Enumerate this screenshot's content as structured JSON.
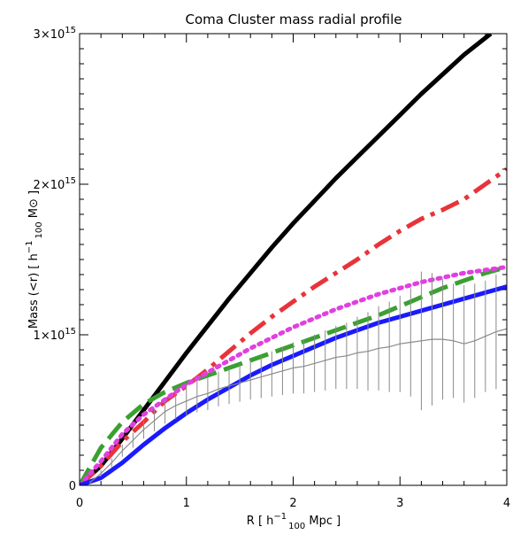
{
  "chart_data": {
    "type": "line",
    "title": "Coma Cluster mass radial profile",
    "xlabel": "R [ h-1 100 Mpc ]",
    "ylabel": "Mass (<r) [ h-1 100 M⊙ ]",
    "xlabel_parts": {
      "pre": "R [ h",
      "sup": "−1",
      "sub": "100",
      "post": " Mpc ]"
    },
    "ylabel_parts": {
      "pre": "Mass (<r) [ h",
      "sup": "−1",
      "sub": "100",
      "post": " M⊙ ]"
    },
    "xlim": [
      0,
      4
    ],
    "ylim": [
      0,
      3000000000000000.0
    ],
    "x_ticks": [
      {
        "value": 0,
        "label": "0"
      },
      {
        "value": 1,
        "label": "1"
      },
      {
        "value": 2,
        "label": "2"
      },
      {
        "value": 3,
        "label": "3"
      },
      {
        "value": 4,
        "label": "4"
      }
    ],
    "y_ticks": [
      {
        "value": 0,
        "base": "0",
        "exp": ""
      },
      {
        "value": 1000000000000000.0,
        "base": "1×10",
        "exp": "15"
      },
      {
        "value": 2000000000000000.0,
        "base": "2×10",
        "exp": "15"
      },
      {
        "value": 3000000000000000.0,
        "base": "3×10",
        "exp": "15"
      }
    ],
    "grid": false,
    "series": [
      {
        "color": "#000000",
        "style": "solid",
        "width": 5,
        "x": [
          0,
          0.2,
          0.4,
          0.6,
          0.8,
          1.0,
          1.2,
          1.4,
          1.6,
          1.8,
          2.0,
          2.2,
          2.4,
          2.6,
          2.8,
          3.0,
          3.2,
          3.4,
          3.6,
          3.85
        ],
        "y": [
          0,
          130000000000000.0,
          310000000000000.0,
          500000000000000.0,
          690000000000000.0,
          880000000000000.0,
          1060000000000000.0,
          1240000000000000.0,
          1410000000000000.0,
          1580000000000000.0,
          1740000000000000.0,
          1890000000000000.0,
          2040000000000000.0,
          2180000000000000.0,
          2320000000000000.0,
          2460000000000000.0,
          2600000000000000.0,
          2730000000000000.0,
          2860000000000000.0,
          3000000000000000.0
        ]
      },
      {
        "color": "#e8333a",
        "style": "dashdot",
        "width": 5,
        "x": [
          0,
          0.2,
          0.4,
          0.6,
          0.8,
          1.0,
          1.2,
          1.4,
          1.6,
          1.8,
          2.0,
          2.2,
          2.4,
          2.6,
          2.8,
          3.0,
          3.2,
          3.4,
          3.6,
          3.8,
          4.0
        ],
        "y": [
          0,
          130000000000000.0,
          290000000000000.0,
          420000000000000.0,
          560000000000000.0,
          660000000000000.0,
          770000000000000.0,
          890000000000000.0,
          1010000000000000.0,
          1120000000000000.0,
          1220000000000000.0,
          1320000000000000.0,
          1410000000000000.0,
          1500000000000000.0,
          1600000000000000.0,
          1690000000000000.0,
          1770000000000000.0,
          1830000000000000.0,
          1900000000000000.0,
          2000000000000000.0,
          2100000000000000.0
        ]
      },
      {
        "color": "#3aa030",
        "style": "dashed",
        "width": 5,
        "x": [
          0,
          0.2,
          0.4,
          0.6,
          0.8,
          1.0,
          1.2,
          1.4,
          1.6,
          1.8,
          2.0,
          2.2,
          2.4,
          2.6,
          2.8,
          3.0,
          3.2,
          3.4,
          3.6,
          3.8,
          4.0
        ],
        "y": [
          0,
          250000000000000.0,
          420000000000000.0,
          540000000000000.0,
          620000000000000.0,
          680000000000000.0,
          730000000000000.0,
          780000000000000.0,
          830000000000000.0,
          880000000000000.0,
          930000000000000.0,
          980000000000000.0,
          1030000000000000.0,
          1080000000000000.0,
          1130000000000000.0,
          1190000000000000.0,
          1250000000000000.0,
          1310000000000000.0,
          1360000000000000.0,
          1410000000000000.0,
          1450000000000000.0
        ]
      },
      {
        "color": "#e040e0",
        "style": "dotted",
        "width": 5,
        "x": [
          0,
          0.2,
          0.4,
          0.6,
          0.8,
          1.0,
          1.2,
          1.4,
          1.6,
          1.8,
          2.0,
          2.2,
          2.4,
          2.6,
          2.8,
          3.0,
          3.2,
          3.4,
          3.6,
          3.8,
          4.0
        ],
        "y": [
          0,
          160000000000000.0,
          340000000000000.0,
          470000000000000.0,
          570000000000000.0,
          670000000000000.0,
          750000000000000.0,
          830000000000000.0,
          910000000000000.0,
          980000000000000.0,
          1050000000000000.0,
          1110000000000000.0,
          1170000000000000.0,
          1220000000000000.0,
          1270000000000000.0,
          1310000000000000.0,
          1350000000000000.0,
          1380000000000000.0,
          1410000000000000.0,
          1430000000000000.0,
          1450000000000000.0
        ]
      },
      {
        "color": "#1a1aff",
        "style": "solid",
        "width": 5,
        "x": [
          0,
          0.2,
          0.4,
          0.6,
          0.8,
          1.0,
          1.2,
          1.4,
          1.6,
          1.8,
          2.0,
          2.2,
          2.4,
          2.6,
          2.8,
          3.0,
          3.2,
          3.4,
          3.6,
          3.8,
          4.0
        ],
        "y": [
          0,
          50000000000000.0,
          150000000000000.0,
          270000000000000.0,
          380000000000000.0,
          480000000000000.0,
          570000000000000.0,
          650000000000000.0,
          730000000000000.0,
          800000000000000.0,
          860000000000000.0,
          920000000000000.0,
          980000000000000.0,
          1030000000000000.0,
          1080000000000000.0,
          1120000000000000.0,
          1160000000000000.0,
          1200000000000000.0,
          1240000000000000.0,
          1280000000000000.0,
          1320000000000000.0
        ]
      },
      {
        "color": "#8a8a8a",
        "style": "solid",
        "width": 1.2,
        "errorbars": true,
        "x": [
          0.1,
          0.2,
          0.3,
          0.4,
          0.5,
          0.6,
          0.7,
          0.8,
          0.9,
          1.0,
          1.1,
          1.2,
          1.3,
          1.4,
          1.5,
          1.6,
          1.7,
          1.8,
          1.9,
          2.0,
          2.1,
          2.2,
          2.3,
          2.4,
          2.5,
          2.6,
          2.7,
          2.8,
          2.9,
          3.0,
          3.1,
          3.2,
          3.3,
          3.4,
          3.5,
          3.6,
          3.7,
          3.8,
          3.9,
          4.0
        ],
        "y": [
          20000000000000.0,
          80000000000000.0,
          150000000000000.0,
          230000000000000.0,
          300000000000000.0,
          370000000000000.0,
          430000000000000.0,
          490000000000000.0,
          530000000000000.0,
          560000000000000.0,
          590000000000000.0,
          610000000000000.0,
          640000000000000.0,
          660000000000000.0,
          680000000000000.0,
          700000000000000.0,
          720000000000000.0,
          740000000000000.0,
          760000000000000.0,
          780000000000000.0,
          790000000000000.0,
          810000000000000.0,
          830000000000000.0,
          850000000000000.0,
          860000000000000.0,
          880000000000000.0,
          890000000000000.0,
          910000000000000.0,
          920000000000000.0,
          940000000000000.0,
          950000000000000.0,
          960000000000000.0,
          970000000000000.0,
          970000000000000.0,
          960000000000000.0,
          940000000000000.0,
          960000000000000.0,
          990000000000000.0,
          1020000000000000.0,
          1040000000000000.0
        ],
        "err": [
          10000000000000.0,
          20000000000000.0,
          30000000000000.0,
          40000000000000.0,
          50000000000000.0,
          60000000000000.0,
          70000000000000.0,
          80000000000000.0,
          90000000000000.0,
          100000000000000.0,
          105000000000000.0,
          110000000000000.0,
          115000000000000.0,
          120000000000000.0,
          125000000000000.0,
          130000000000000.0,
          140000000000000.0,
          150000000000000.0,
          160000000000000.0,
          170000000000000.0,
          180000000000000.0,
          190000000000000.0,
          200000000000000.0,
          210000000000000.0,
          220000000000000.0,
          240000000000000.0,
          260000000000000.0,
          280000000000000.0,
          300000000000000.0,
          320000000000000.0,
          360000000000000.0,
          460000000000000.0,
          440000000000000.0,
          400000000000000.0,
          380000000000000.0,
          390000000000000.0,
          380000000000000.0,
          370000000000000.0,
          380000000000000.0,
          380000000000000.0
        ]
      }
    ]
  }
}
